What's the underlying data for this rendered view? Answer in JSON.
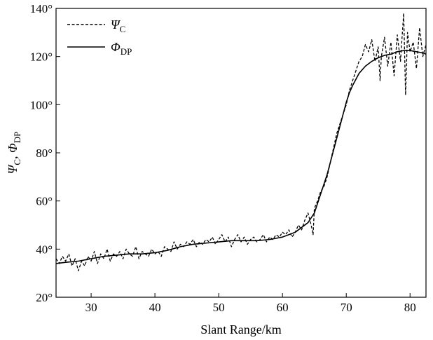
{
  "chart_data": {
    "type": "line",
    "xlabel": "Slant Range/km",
    "ylabel": {
      "main1": "Ψ",
      "sub1": "C",
      "sep": ", ",
      "main2": "Φ",
      "sub2": "DP"
    },
    "xlim": [
      24.5,
      82.5
    ],
    "ylim": [
      20,
      140
    ],
    "xticks": [
      30,
      40,
      50,
      60,
      70,
      80
    ],
    "yticks": [
      20,
      40,
      60,
      80,
      100,
      120,
      140
    ],
    "ytick_suffix": "°",
    "legend_position": "top-left",
    "series": [
      {
        "name": "Ψ_C",
        "legend_main": "Ψ",
        "legend_sub": "C",
        "style": "dashed",
        "x": [
          24.5,
          25,
          25.5,
          26,
          26.5,
          27,
          27.5,
          28,
          28.5,
          29,
          29.5,
          30,
          30.5,
          31,
          31.5,
          32,
          32.5,
          33,
          33.5,
          34,
          34.5,
          35,
          35.5,
          36,
          36.5,
          37,
          37.5,
          38,
          38.5,
          39,
          39.5,
          40,
          40.5,
          41,
          41.5,
          42,
          42.5,
          43,
          43.5,
          44,
          44.5,
          45,
          45.5,
          46,
          46.5,
          47,
          47.5,
          48,
          48.5,
          49,
          49.5,
          50,
          50.5,
          51,
          51.5,
          52,
          52.5,
          53,
          53.5,
          54,
          54.5,
          55,
          55.5,
          56,
          56.5,
          57,
          57.5,
          58,
          58.5,
          59,
          59.5,
          60,
          60.5,
          61,
          61.5,
          62,
          62.5,
          63,
          63.5,
          64,
          64.5,
          64.8,
          65,
          65.5,
          66,
          66.5,
          67,
          67.5,
          68,
          68.5,
          69,
          69.5,
          70,
          70.5,
          71,
          71.5,
          72,
          72.5,
          73,
          73.5,
          74,
          74.5,
          75,
          75.3,
          75.5,
          76,
          76.5,
          77,
          77.5,
          78,
          78.5,
          79,
          79.3,
          79.6,
          80,
          80.5,
          81,
          81.5,
          82,
          82.5
        ],
        "y": [
          36,
          34,
          37,
          35,
          38,
          33,
          36,
          31,
          35,
          33,
          37,
          35,
          39,
          34,
          38,
          36,
          40,
          35,
          38,
          37,
          39,
          36,
          40,
          38,
          37,
          41,
          36,
          39,
          38,
          37,
          40,
          38,
          39,
          37,
          41,
          40,
          39,
          43,
          40,
          42,
          41,
          43,
          42,
          44,
          41,
          43,
          42,
          44,
          43,
          45,
          42,
          44,
          46,
          43,
          45,
          41,
          44,
          46,
          43,
          45,
          42,
          44,
          45,
          43,
          44,
          46,
          43,
          45,
          44,
          46,
          45,
          47,
          46,
          48,
          45,
          47,
          50,
          48,
          52,
          55,
          50,
          46,
          57,
          60,
          64,
          66,
          70,
          76,
          82,
          88,
          92,
          96,
          100,
          106,
          110,
          114,
          118,
          120,
          125,
          122,
          127,
          118,
          124,
          110,
          120,
          128,
          116,
          126,
          112,
          129,
          118,
          138,
          104,
          130,
          122,
          126,
          115,
          132,
          120,
          125
        ],
        "color": "#000000"
      },
      {
        "name": "Φ_DP",
        "legend_main": "Φ",
        "legend_sub": "DP",
        "style": "solid",
        "x": [
          24.5,
          26,
          28,
          30,
          32,
          34,
          36,
          38,
          40,
          42,
          44,
          46,
          48,
          50,
          52,
          54,
          56,
          58,
          60,
          61,
          62,
          63,
          64,
          65,
          65.5,
          66,
          66.5,
          67,
          67.5,
          68,
          68.5,
          69,
          69.5,
          70,
          70.5,
          71,
          72,
          73,
          74,
          75,
          76,
          77,
          78,
          79,
          80,
          81,
          82,
          82.5
        ],
        "y": [
          34,
          34.5,
          35,
          36,
          37,
          37.5,
          38,
          38,
          38.5,
          39.5,
          41,
          42,
          42.5,
          43,
          43.5,
          43.5,
          43.5,
          44,
          45,
          46,
          47,
          49,
          51,
          55,
          59,
          63,
          67,
          71,
          76,
          81,
          86,
          91,
          96,
          101,
          105,
          108,
          113,
          116,
          118,
          119.5,
          120.5,
          121,
          122,
          122.5,
          122.5,
          122,
          121.5,
          121
        ],
        "color": "#000000"
      }
    ]
  }
}
